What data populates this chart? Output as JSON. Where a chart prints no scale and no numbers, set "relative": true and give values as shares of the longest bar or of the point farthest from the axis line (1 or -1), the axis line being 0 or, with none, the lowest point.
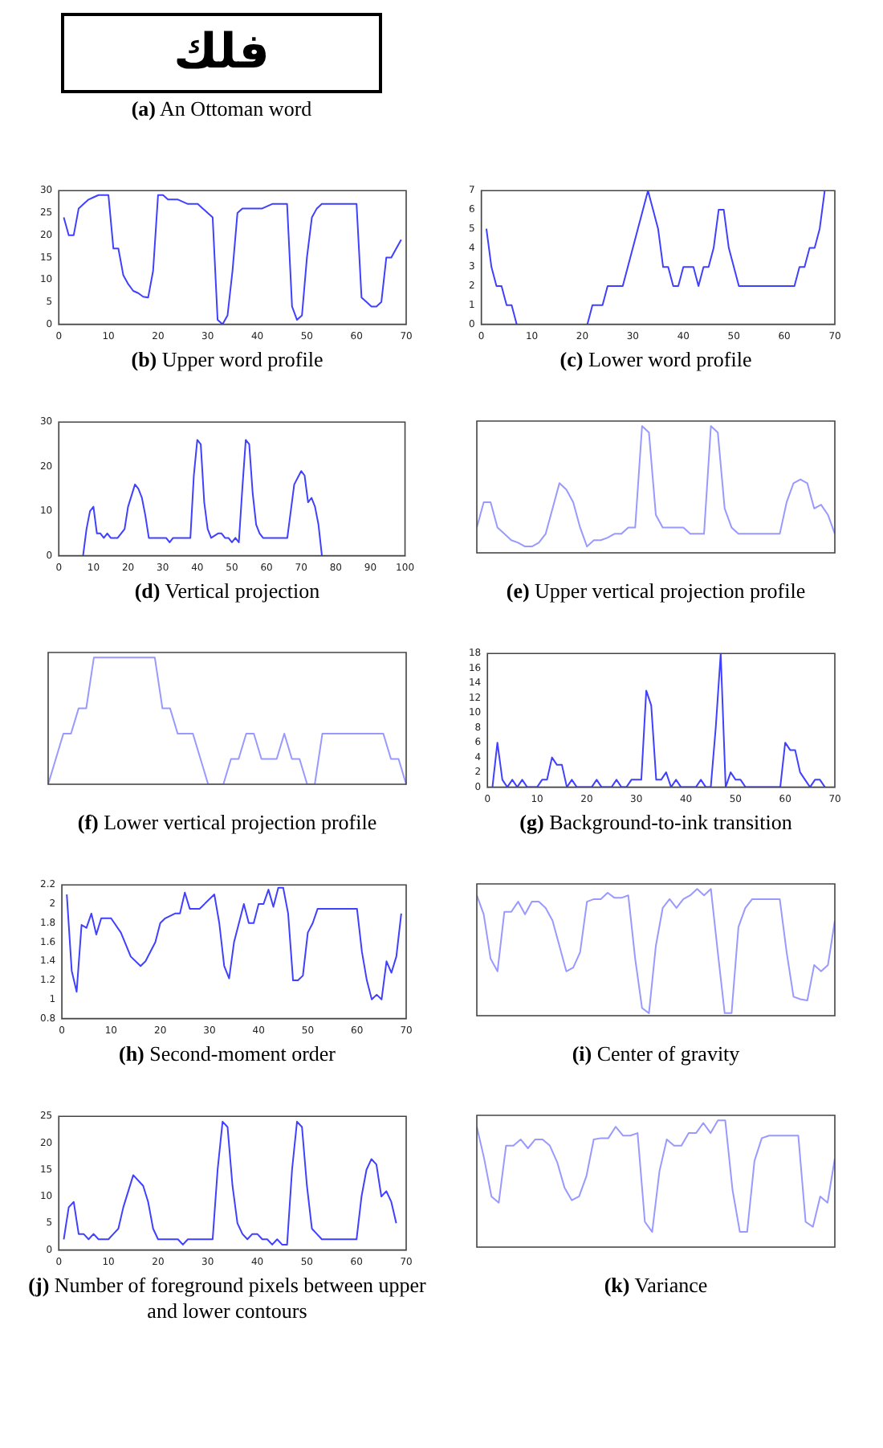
{
  "chart_data": [
    {
      "type": "other",
      "title": "(a) An Ottoman word",
      "annotations": [
        "فلك"
      ]
    },
    {
      "type": "line",
      "title": "(b) Upper word profile",
      "xlim": [
        0,
        70
      ],
      "xticks": [
        0,
        10,
        20,
        30,
        40,
        50,
        60,
        70
      ],
      "ylim": [
        0,
        30
      ],
      "yticks": [
        0,
        5,
        10,
        15,
        20,
        25,
        30
      ],
      "series": [
        {
          "color": "#4040ff",
          "x": [
            1,
            2,
            3,
            4,
            5,
            6,
            7,
            8,
            9,
            10,
            11,
            12,
            13,
            14,
            15,
            16,
            17,
            18,
            19,
            20,
            21,
            22,
            23,
            24,
            25,
            26,
            27,
            28,
            29,
            30,
            31,
            32,
            33,
            34,
            35,
            36,
            37,
            38,
            39,
            40,
            41,
            42,
            43,
            44,
            45,
            46,
            47,
            48,
            49,
            50,
            51,
            52,
            53,
            54,
            60,
            61,
            62,
            63,
            64,
            65,
            66,
            67,
            68,
            69
          ],
          "values": [
            24,
            20,
            20,
            26,
            27,
            28,
            28.5,
            29,
            29,
            29,
            17,
            17,
            11,
            9,
            7.5,
            7,
            6.2,
            6,
            12,
            29,
            29,
            28,
            28,
            28,
            27.5,
            27,
            27,
            27,
            26,
            25,
            24,
            1,
            0,
            2,
            12,
            25,
            26,
            26,
            26,
            26,
            26,
            26.5,
            27,
            27,
            27,
            27,
            4,
            1,
            2,
            15,
            24,
            26,
            27,
            27,
            27,
            6,
            5,
            4,
            4,
            5,
            15,
            15,
            17,
            19
          ]
        }
      ]
    },
    {
      "type": "line",
      "title": "(c) Lower word profile",
      "xlim": [
        0,
        70
      ],
      "xticks": [
        0,
        10,
        20,
        30,
        40,
        50,
        60,
        70
      ],
      "ylim": [
        0,
        7
      ],
      "yticks": [
        0,
        1,
        2,
        3,
        4,
        5,
        6,
        7
      ],
      "series": [
        {
          "color": "#4040ff",
          "x": [
            1,
            2,
            3,
            4,
            5,
            6,
            7,
            14,
            21,
            22,
            23,
            24,
            25,
            28,
            33,
            35,
            36,
            37,
            38,
            39,
            40,
            42,
            43,
            44,
            45,
            46,
            47,
            48,
            49,
            51,
            62,
            63,
            64,
            65,
            66,
            67,
            68
          ],
          "values": [
            5,
            3,
            2,
            2,
            1,
            1,
            0,
            null,
            0,
            1,
            1,
            1,
            2,
            2,
            7,
            5,
            3,
            3,
            2,
            2,
            3,
            3,
            2,
            3,
            3,
            4,
            6,
            6,
            4,
            2,
            2,
            3,
            3,
            4,
            4,
            5,
            7
          ]
        }
      ]
    },
    {
      "type": "line",
      "title": "(d) Vertical projection",
      "xlim": [
        0,
        100
      ],
      "xticks": [
        0,
        10,
        20,
        30,
        40,
        50,
        60,
        70,
        80,
        90,
        100
      ],
      "ylim": [
        0,
        30
      ],
      "yticks": [
        0,
        10,
        20,
        30
      ],
      "series": [
        {
          "color": "#4040ff",
          "x": [
            7,
            8,
            9,
            10,
            11,
            12,
            13,
            14,
            15,
            16,
            17,
            18,
            19,
            20,
            22,
            23,
            24,
            25,
            26,
            27,
            31,
            32,
            33,
            38,
            39,
            40,
            41,
            42,
            43,
            44,
            46,
            47,
            48,
            49,
            50,
            51,
            52,
            53,
            54,
            55,
            56,
            57,
            58,
            59,
            66,
            67,
            68,
            70,
            71,
            72,
            73,
            74,
            75,
            76
          ],
          "values": [
            0,
            6,
            10,
            11,
            5,
            5,
            4,
            5,
            4,
            4,
            4,
            5,
            6,
            11,
            16,
            15,
            13,
            9,
            4,
            4,
            4,
            3,
            4,
            4,
            18,
            26,
            25,
            12,
            6,
            4,
            5,
            5,
            4,
            4,
            3,
            4,
            3,
            15,
            26,
            25,
            14,
            7,
            5,
            4,
            4,
            10,
            16,
            19,
            18,
            12,
            13,
            11,
            7,
            0
          ]
        }
      ]
    },
    {
      "type": "line",
      "title": "(e) Upper vertical projection profile",
      "relative": true,
      "categories": [
        null,
        null,
        null,
        null,
        null,
        null,
        null,
        null,
        null,
        null,
        null,
        null,
        null,
        null,
        null,
        null,
        null,
        null,
        null,
        null,
        null,
        null,
        null,
        null,
        null,
        null,
        null,
        null,
        null,
        null,
        null,
        null,
        null,
        null,
        null,
        null,
        null,
        null,
        null,
        null,
        null,
        null,
        null,
        null,
        null,
        null,
        null,
        null,
        null,
        null,
        null,
        null,
        null
      ],
      "series": [
        {
          "color": "#9999ff",
          "values": [
            0.2,
            0.4,
            0.4,
            0.2,
            0.15,
            0.1,
            0.08,
            0.05,
            0.05,
            0.08,
            0.15,
            0.35,
            0.55,
            0.5,
            0.4,
            0.2,
            0.05,
            0.1,
            0.1,
            0.12,
            0.15,
            0.15,
            0.2,
            0.2,
            1,
            0.95,
            0.3,
            0.2,
            0.2,
            0.2,
            0.2,
            0.15,
            0.15,
            0.15,
            1,
            0.95,
            0.35,
            0.2,
            0.15,
            0.15,
            0.15,
            0.15,
            0.15,
            0.15,
            0.15,
            0.4,
            0.55,
            0.58,
            0.55,
            0.35,
            0.38,
            0.3,
            0.15
          ]
        }
      ]
    },
    {
      "type": "line",
      "title": "(f) Lower vertical projection profile",
      "relative": true,
      "categories": [
        null,
        null,
        null,
        null,
        null,
        null,
        null,
        null,
        null,
        null,
        null,
        null,
        null,
        null,
        null,
        null,
        null,
        null,
        null,
        null,
        null,
        null,
        null,
        null,
        null,
        null,
        null,
        null,
        null,
        null,
        null,
        null,
        null,
        null,
        null,
        null,
        null,
        null,
        null,
        null,
        null,
        null,
        null,
        null,
        null,
        null,
        null,
        null
      ],
      "series": [
        {
          "color": "#9999ff",
          "values": [
            0,
            0.2,
            0.4,
            0.4,
            0.6,
            0.6,
            1,
            1,
            1,
            1,
            1,
            1,
            1,
            1,
            1,
            0.6,
            0.6,
            0.4,
            0.4,
            0.4,
            0.2,
            0,
            0,
            0,
            0.2,
            0.2,
            0.4,
            0.4,
            0.2,
            0.2,
            0.2,
            0.4,
            0.2,
            0.2,
            0,
            0,
            0.4,
            0.4,
            0.4,
            0.4,
            0.4,
            0.4,
            0.4,
            0.4,
            0.4,
            0.2,
            0.2,
            0
          ]
        }
      ]
    },
    {
      "type": "line",
      "title": "(g) Background-to-ink transition",
      "xlim": [
        0,
        70
      ],
      "xticks": [
        0,
        10,
        20,
        30,
        40,
        50,
        60,
        70
      ],
      "ylim": [
        0,
        18
      ],
      "yticks": [
        0,
        2,
        4,
        6,
        8,
        10,
        12,
        14,
        16,
        18
      ],
      "series": [
        {
          "color": "#4040ff",
          "x": [
            1,
            2,
            3,
            4,
            5,
            6,
            7,
            8,
            10,
            11,
            12,
            13,
            14,
            15,
            16,
            17,
            18,
            21,
            22,
            23,
            25,
            26,
            27,
            28,
            29,
            30,
            31,
            32,
            33,
            34,
            35,
            36,
            37,
            38,
            39,
            42,
            43,
            44,
            45,
            46,
            47,
            48,
            49,
            50,
            51,
            52,
            59,
            60,
            61,
            62,
            63,
            64,
            65,
            66,
            67,
            68
          ],
          "values": [
            0,
            6,
            1,
            0,
            1,
            0,
            1,
            0,
            0,
            1,
            1,
            4,
            3,
            3,
            0,
            1,
            0,
            0,
            1,
            0,
            0,
            1,
            0,
            0,
            1,
            1,
            1,
            13,
            11,
            1,
            1,
            2,
            0,
            1,
            0,
            0,
            1,
            0,
            0,
            8,
            18,
            0,
            2,
            1,
            1,
            0,
            0,
            6,
            5,
            5,
            2,
            1,
            0,
            1,
            1,
            0
          ]
        }
      ]
    },
    {
      "type": "line",
      "title": "(h) Second-moment order",
      "xlim": [
        0,
        70
      ],
      "xticks": [
        0,
        10,
        20,
        30,
        40,
        50,
        60,
        70
      ],
      "ylim": [
        0.8,
        2.2
      ],
      "yticks": [
        0.8,
        1,
        1.2,
        1.4,
        1.6,
        1.8,
        2,
        2.2
      ],
      "series": [
        {
          "color": "#4040ff",
          "x": [
            1,
            2,
            3,
            4,
            5,
            6,
            7,
            8,
            10,
            12,
            14,
            16,
            17,
            19,
            20,
            21,
            23,
            24,
            25,
            26,
            28,
            31,
            32,
            33,
            34,
            35,
            37,
            38,
            39,
            40,
            41,
            42,
            43,
            44,
            45,
            46,
            47,
            48,
            49,
            50,
            51,
            52,
            60,
            61,
            62,
            63,
            64,
            65,
            66,
            67,
            68,
            69
          ],
          "values": [
            2.1,
            1.3,
            1.08,
            1.78,
            1.75,
            1.9,
            1.68,
            1.85,
            1.85,
            1.7,
            1.45,
            1.35,
            1.4,
            1.6,
            1.8,
            1.85,
            1.9,
            1.9,
            2.12,
            1.95,
            1.95,
            2.1,
            1.8,
            1.35,
            1.22,
            1.6,
            2,
            1.8,
            1.8,
            2,
            2,
            2.15,
            1.97,
            2.17,
            2.17,
            1.9,
            1.2,
            1.2,
            1.25,
            1.7,
            1.8,
            1.95,
            1.95,
            1.5,
            1.2,
            1,
            1.05,
            1,
            1.4,
            1.28,
            1.45,
            1.9
          ]
        }
      ]
    },
    {
      "type": "line",
      "title": "(i) Center of gravity",
      "relative": true,
      "categories": [
        null,
        null,
        null,
        null,
        null,
        null,
        null,
        null,
        null,
        null,
        null,
        null,
        null,
        null,
        null,
        null,
        null,
        null,
        null,
        null,
        null,
        null,
        null,
        null,
        null,
        null,
        null,
        null,
        null,
        null,
        null,
        null,
        null,
        null,
        null,
        null,
        null,
        null,
        null,
        null,
        null,
        null,
        null,
        null,
        null,
        null,
        null,
        null,
        null,
        null,
        null,
        null,
        null
      ],
      "series": [
        {
          "color": "#9999ff",
          "values": [
            0.95,
            0.8,
            0.45,
            0.35,
            0.82,
            0.82,
            0.9,
            0.8,
            0.9,
            0.9,
            0.85,
            0.75,
            0.55,
            0.35,
            0.38,
            0.5,
            0.9,
            0.92,
            0.92,
            0.97,
            0.93,
            0.93,
            0.95,
            0.45,
            0.06,
            0.02,
            0.55,
            0.85,
            0.92,
            0.85,
            0.92,
            0.95,
            1,
            0.95,
            1,
            0.5,
            0.02,
            0.02,
            0.7,
            0.85,
            0.92,
            0.92,
            0.92,
            0.92,
            0.92,
            0.5,
            0.15,
            0.13,
            0.12,
            0.4,
            0.35,
            0.4,
            0.75
          ]
        }
      ]
    },
    {
      "type": "line",
      "title": "(j) Number of foreground pixels between upper and lower contours",
      "xlim": [
        0,
        70
      ],
      "xticks": [
        0,
        10,
        20,
        30,
        40,
        50,
        60,
        70
      ],
      "ylim": [
        0,
        25
      ],
      "yticks": [
        0,
        5,
        10,
        15,
        20,
        25
      ],
      "series": [
        {
          "color": "#4040ff",
          "x": [
            1,
            2,
            3,
            4,
            5,
            6,
            7,
            8,
            9,
            10,
            11,
            12,
            13,
            15,
            17,
            18,
            19,
            20,
            24,
            25,
            26,
            31,
            32,
            33,
            34,
            35,
            36,
            37,
            38,
            39,
            40,
            41,
            42,
            43,
            44,
            45,
            46,
            47,
            48,
            49,
            50,
            51,
            52,
            53,
            60,
            61,
            62,
            63,
            64,
            65,
            66,
            67,
            68
          ],
          "values": [
            2,
            8,
            9,
            3,
            3,
            2,
            3,
            2,
            2,
            2,
            3,
            4,
            8,
            14,
            12,
            9,
            4,
            2,
            2,
            1,
            2,
            2,
            15,
            24,
            23,
            12,
            5,
            3,
            2,
            3,
            3,
            2,
            2,
            1,
            2,
            1,
            1,
            15,
            24,
            23,
            12,
            4,
            3,
            2,
            2,
            10,
            15,
            17,
            16,
            10,
            11,
            9,
            5
          ]
        }
      ]
    },
    {
      "type": "line",
      "title": "(k) Variance",
      "relative": true,
      "categories": [
        null,
        null,
        null,
        null,
        null,
        null,
        null,
        null,
        null,
        null,
        null,
        null,
        null,
        null,
        null,
        null,
        null,
        null,
        null,
        null,
        null,
        null,
        null,
        null,
        null,
        null,
        null,
        null,
        null,
        null,
        null,
        null,
        null,
        null,
        null,
        null,
        null,
        null,
        null,
        null,
        null,
        null,
        null,
        null,
        null,
        null,
        null,
        null,
        null,
        null
      ],
      "series": [
        {
          "color": "#9999ff",
          "values": [
            0.95,
            0.7,
            0.4,
            0.35,
            0.8,
            0.8,
            0.85,
            0.78,
            0.85,
            0.85,
            0.8,
            0.67,
            0.47,
            0.37,
            0.4,
            0.56,
            0.85,
            0.86,
            0.86,
            0.95,
            0.88,
            0.88,
            0.9,
            0.2,
            0.12,
            0.6,
            0.85,
            0.8,
            0.8,
            0.9,
            0.9,
            0.98,
            0.9,
            1,
            1,
            0.45,
            0.12,
            0.12,
            0.68,
            0.86,
            0.88,
            0.88,
            0.88,
            0.88,
            0.88,
            0.2,
            0.16,
            0.4,
            0.35,
            0.7
          ]
        }
      ]
    }
  ]
}
